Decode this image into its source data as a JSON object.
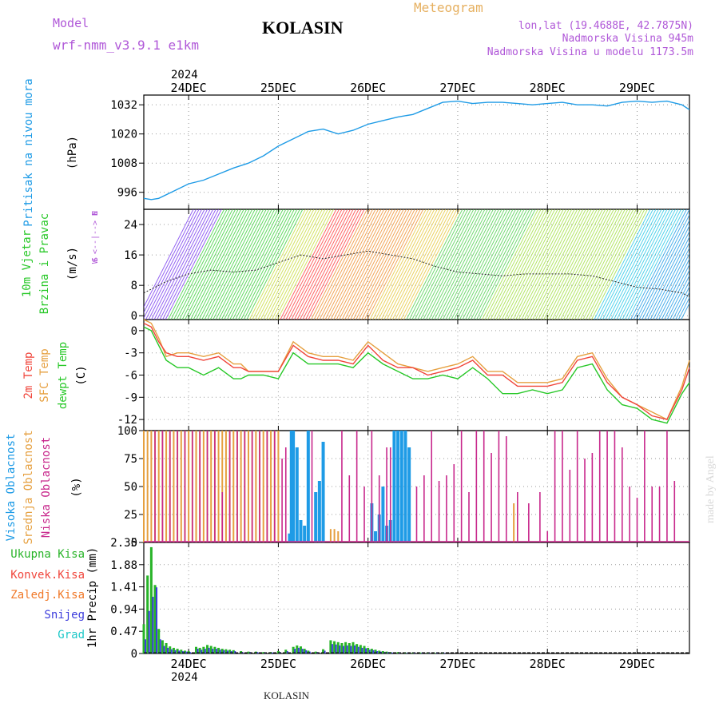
{
  "header": {
    "model_label": "Model",
    "model_name": "wrf-nmm_v3.9.1  e1km",
    "station": "KOLASIN",
    "product": "Meteogram",
    "lonlat": "lon,lat (19.4688E, 42.7875N)",
    "elevation": "Nadmorska Visina 945m",
    "model_elevation": "Nadmorska Visina u modelu 1173.5m",
    "year": "2024",
    "footer_station": "KOLASIN",
    "credit": "made by Angel"
  },
  "colors": {
    "pressure": "#1e9be6",
    "temp_2m": "#f0463c",
    "temp_sfc": "#e6a040",
    "dewpoint": "#28c828",
    "cloud_high": "#1e9be6",
    "cloud_mid": "#e6a040",
    "cloud_low": "#c8288c",
    "precip_total": "#28b428",
    "precip_conv": "#f0463c",
    "precip_frz": "#f07828",
    "precip_snow": "#3c3cdc",
    "precip_hail": "#1ec8c8"
  },
  "panel_labels": {
    "pressure": [
      "Pritisak na nivou mora",
      "(hPa)"
    ],
    "wind": [
      "10m Vjetar",
      "Brzina i Pravac",
      "(m/s)"
    ],
    "wind_compass": [
      "N",
      "^",
      "|",
      "W <--|--> E",
      "|",
      "v",
      "S"
    ],
    "temp": [
      "2m Temp",
      "SFC Temp",
      "dewpt Temp",
      "(C)"
    ],
    "cloud": [
      "Visoka Oblacnost",
      "Srednja Oblacnost",
      "Niska Oblacnost",
      "(%)"
    ],
    "precip_legend": [
      "Ukupna Kisa",
      "Konvek.Kisa",
      "Zaledj.Kisa",
      "Snijeg",
      "Grad"
    ],
    "precip_axis": "1hr Precip (mm)"
  },
  "chart_data": [
    {
      "id": "pressure",
      "type": "line",
      "x_unit": "hours from 23DEC 12UTC",
      "x_ticks": [
        "24DEC",
        "25DEC",
        "26DEC",
        "27DEC",
        "28DEC",
        "29DEC"
      ],
      "ylabel": "(hPa)",
      "ylim": [
        989,
        1036
      ],
      "yticks": [
        996,
        1008,
        1020,
        1032
      ],
      "grid": true,
      "series": [
        {
          "name": "Pritisak na nivou mora",
          "x": [
            0,
            2,
            4,
            8,
            12,
            16,
            20,
            24,
            28,
            32,
            36,
            40,
            44,
            48,
            52,
            56,
            60,
            64,
            68,
            72,
            76,
            80,
            84,
            88,
            92,
            96,
            100,
            104,
            108,
            112,
            116,
            120,
            124,
            128,
            132,
            136,
            140,
            144,
            146
          ],
          "values": [
            993.5,
            993,
            993.5,
            996.5,
            999.5,
            1001,
            1003.5,
            1006,
            1008,
            1011,
            1015,
            1018,
            1021,
            1022,
            1020,
            1021.5,
            1024,
            1025.5,
            1027,
            1028,
            1030.5,
            1033,
            1033.5,
            1032.5,
            1033,
            1033,
            1032.5,
            1032,
            1032.5,
            1033,
            1032,
            1032,
            1031.5,
            1033,
            1033.5,
            1033,
            1033.5,
            1032,
            1030
          ]
        }
      ]
    },
    {
      "id": "wind",
      "type": "line",
      "x_unit": "hours from 23DEC 12UTC",
      "ylabel": "(m/s)",
      "ylim": [
        -1,
        28
      ],
      "yticks": [
        0,
        8,
        16,
        24
      ],
      "grid": true,
      "series": [
        {
          "name": "10m Vjetar",
          "x": [
            0,
            6,
            12,
            18,
            24,
            30,
            36,
            42,
            48,
            54,
            60,
            66,
            72,
            78,
            84,
            90,
            96,
            102,
            108,
            114,
            120,
            126,
            132,
            138,
            144,
            146
          ],
          "values": [
            6,
            9,
            11,
            12,
            11.5,
            12,
            14,
            16,
            15,
            16,
            17,
            16,
            15,
            13,
            11.5,
            11,
            10.5,
            11,
            11,
            11,
            10.5,
            9,
            7.5,
            7,
            6,
            5
          ]
        }
      ]
    },
    {
      "id": "temperature",
      "type": "line",
      "x_unit": "hours from 23DEC 12UTC",
      "ylabel": "(C)",
      "ylim": [
        -13.5,
        1.5
      ],
      "yticks": [
        0,
        -3,
        -6,
        -9,
        -12
      ],
      "grid": true,
      "series": [
        {
          "name": "2m Temp",
          "x": [
            0,
            2,
            4,
            6,
            9,
            12,
            16,
            20,
            24,
            26,
            28,
            32,
            36,
            40,
            44,
            48,
            52,
            56,
            60,
            64,
            68,
            72,
            76,
            80,
            84,
            88,
            92,
            96,
            100,
            104,
            108,
            112,
            116,
            120,
            124,
            128,
            132,
            136,
            140,
            144,
            146
          ],
          "values": [
            1,
            0.5,
            -1.5,
            -3,
            -3.5,
            -3.5,
            -4,
            -3.5,
            -5,
            -5,
            -5.5,
            -5.5,
            -5.5,
            -2,
            -3.5,
            -4,
            -4,
            -4.5,
            -2,
            -4,
            -5,
            -5,
            -6,
            -5.5,
            -5,
            -4,
            -6,
            -6,
            -7.5,
            -7.5,
            -7.5,
            -7,
            -4,
            -3.5,
            -7,
            -9,
            -10,
            -11.5,
            -12,
            -8,
            -5
          ]
        },
        {
          "name": "SFC Temp",
          "x": [
            0,
            2,
            4,
            6,
            9,
            12,
            16,
            20,
            24,
            26,
            28,
            32,
            36,
            40,
            44,
            48,
            52,
            56,
            60,
            64,
            68,
            72,
            76,
            80,
            84,
            88,
            92,
            96,
            100,
            104,
            108,
            112,
            116,
            120,
            124,
            128,
            132,
            136,
            140,
            144,
            146
          ],
          "values": [
            1.5,
            1,
            -1,
            -3.5,
            -3,
            -3,
            -3.5,
            -3,
            -4.5,
            -4.5,
            -5.5,
            -5.5,
            -5.5,
            -1.5,
            -3,
            -3.5,
            -3.5,
            -4,
            -1.5,
            -3,
            -4.5,
            -5,
            -5.5,
            -5,
            -4.5,
            -3.5,
            -5.5,
            -5.5,
            -7,
            -7,
            -7,
            -6.5,
            -3.5,
            -3,
            -6.5,
            -9,
            -10,
            -11,
            -12,
            -7.5,
            -4
          ]
        },
        {
          "name": "dewpt Temp",
          "x": [
            0,
            2,
            4,
            6,
            9,
            12,
            16,
            20,
            24,
            26,
            28,
            32,
            36,
            40,
            44,
            48,
            52,
            56,
            60,
            64,
            68,
            72,
            76,
            80,
            84,
            88,
            92,
            96,
            100,
            104,
            108,
            112,
            116,
            120,
            124,
            128,
            132,
            136,
            140,
            144,
            146
          ],
          "values": [
            0.5,
            0,
            -2,
            -4,
            -5,
            -5,
            -6,
            -5,
            -6.5,
            -6.5,
            -6,
            -6,
            -6.5,
            -3,
            -4.5,
            -4.5,
            -4.5,
            -5,
            -3,
            -4.5,
            -5.5,
            -6.5,
            -6.5,
            -6,
            -6.5,
            -5,
            -6.5,
            -8.5,
            -8.5,
            -8,
            -8.5,
            -8,
            -5,
            -4.5,
            -8,
            -10,
            -10.5,
            -12,
            -12.5,
            -8.5,
            -7
          ]
        }
      ]
    },
    {
      "id": "cloud",
      "type": "bar",
      "x_unit": "hours from 23DEC 12UTC",
      "ylabel": "(%)",
      "ylim": [
        0,
        100
      ],
      "yticks": [
        0,
        25,
        50,
        75,
        100
      ],
      "grid": true,
      "series": [
        {
          "name": "Visoka Oblacnost",
          "x": [
            39,
            39.5,
            40,
            41,
            42,
            43,
            44,
            46,
            47,
            48,
            61,
            62,
            63,
            64,
            65,
            66,
            67,
            68,
            69,
            70,
            71
          ],
          "values": [
            8,
            100,
            100,
            85,
            20,
            15,
            100,
            45,
            55,
            90,
            35,
            10,
            25,
            50,
            15,
            20,
            100,
            100,
            100,
            100,
            85
          ]
        },
        {
          "name": "Srednja Oblacnost",
          "x": [
            0,
            1,
            2,
            3,
            4,
            5,
            6,
            7,
            8,
            9,
            10,
            11,
            12,
            13,
            14,
            15,
            16,
            17,
            18,
            19,
            20,
            21,
            22,
            23,
            24,
            25,
            26,
            27,
            28,
            29,
            30,
            31,
            32,
            33,
            34,
            35,
            36,
            50,
            51,
            52,
            99
          ],
          "values": [
            100,
            100,
            100,
            100,
            100,
            100,
            100,
            100,
            100,
            100,
            100,
            100,
            100,
            100,
            100,
            100,
            100,
            100,
            100,
            100,
            100,
            100,
            100,
            100,
            100,
            100,
            100,
            100,
            100,
            100,
            100,
            100,
            100,
            100,
            100,
            100,
            100,
            12,
            12,
            10,
            35
          ]
        },
        {
          "name": "Niska Oblacnost",
          "x": [
            3,
            5,
            7,
            9,
            11,
            13,
            15,
            17,
            19,
            21,
            23,
            25,
            27,
            29,
            31,
            33,
            35,
            37,
            38,
            45,
            53,
            55,
            57,
            59,
            61,
            63,
            65,
            66,
            73,
            75,
            77,
            79,
            81,
            83,
            85,
            87,
            89,
            91,
            93,
            95,
            97,
            100,
            103,
            106,
            108,
            110,
            112,
            114,
            116,
            118,
            120,
            122,
            124,
            126,
            128,
            130,
            132,
            134,
            136,
            138,
            140,
            142
          ],
          "values": [
            100,
            100,
            100,
            100,
            100,
            100,
            100,
            100,
            100,
            45,
            100,
            100,
            100,
            100,
            100,
            100,
            100,
            75,
            85,
            100,
            100,
            60,
            100,
            50,
            100,
            60,
            85,
            85,
            50,
            60,
            100,
            55,
            60,
            70,
            100,
            45,
            100,
            100,
            80,
            100,
            95,
            45,
            35,
            45,
            10,
            100,
            100,
            65,
            100,
            75,
            80,
            100,
            100,
            100,
            85,
            50,
            40,
            100,
            50,
            50,
            100,
            55
          ]
        }
      ]
    },
    {
      "id": "precip",
      "type": "bar",
      "x_unit": "hours from 23DEC 12UTC",
      "x_ticks": [
        "24DEC",
        "25DEC",
        "26DEC",
        "27DEC",
        "28DEC",
        "29DEC"
      ],
      "ylabel": "1hr Precip (mm)",
      "ylim": [
        0,
        2.35
      ],
      "yticks": [
        0,
        0.47,
        0.94,
        1.41,
        1.88,
        2.35
      ],
      "grid": true,
      "series": [
        {
          "name": "Ukupna Kisa",
          "x": [
            0,
            1,
            2,
            3,
            4,
            5,
            6,
            7,
            8,
            9,
            10,
            11,
            12,
            14,
            15,
            16,
            17,
            18,
            19,
            20,
            21,
            22,
            23,
            24,
            26,
            28,
            30,
            32,
            34,
            36,
            38,
            40,
            41,
            42,
            43,
            44,
            46,
            48,
            50,
            51,
            52,
            53,
            54,
            55,
            56,
            57,
            58,
            59,
            60,
            61,
            62,
            63,
            64,
            65,
            66,
            68,
            70,
            72,
            74,
            76,
            78,
            80
          ],
          "values": [
            0.62,
            1.65,
            2.25,
            1.45,
            0.52,
            0.28,
            0.22,
            0.15,
            0.12,
            0.1,
            0.08,
            0.06,
            0.05,
            0.14,
            0.12,
            0.14,
            0.18,
            0.16,
            0.14,
            0.12,
            0.1,
            0.09,
            0.08,
            0.07,
            0.05,
            0.04,
            0.04,
            0.03,
            0.03,
            0.05,
            0.08,
            0.14,
            0.17,
            0.15,
            0.1,
            0.06,
            0.04,
            0.09,
            0.28,
            0.26,
            0.24,
            0.22,
            0.24,
            0.22,
            0.24,
            0.2,
            0.18,
            0.16,
            0.12,
            0.1,
            0.08,
            0.06,
            0.05,
            0.04,
            0.03,
            0.03,
            0.02,
            0.02,
            0.02,
            0.02,
            0.01,
            0.01
          ]
        },
        {
          "name": "Snijeg",
          "x": [
            0,
            1,
            2,
            3,
            4,
            5,
            6,
            7,
            8,
            9,
            10,
            11,
            12,
            14,
            15,
            16,
            17,
            18,
            19,
            20,
            21,
            22,
            23,
            24,
            26,
            28,
            30,
            32,
            34,
            36,
            38,
            40,
            41,
            42,
            43,
            44,
            46,
            48,
            50,
            51,
            52,
            53,
            54,
            55,
            56,
            57,
            58,
            59,
            60,
            61,
            62,
            63,
            64,
            65,
            66,
            68,
            70,
            72,
            74,
            76,
            78,
            80
          ],
          "values": [
            0.3,
            0.9,
            1.2,
            1.4,
            0.3,
            0.16,
            0.12,
            0.09,
            0.07,
            0.06,
            0.05,
            0.04,
            0.03,
            0.1,
            0.08,
            0.1,
            0.12,
            0.1,
            0.1,
            0.08,
            0.07,
            0.06,
            0.05,
            0.05,
            0.03,
            0.03,
            0.03,
            0.02,
            0.02,
            0.03,
            0.05,
            0.1,
            0.12,
            0.1,
            0.07,
            0.04,
            0.03,
            0.06,
            0.2,
            0.19,
            0.17,
            0.16,
            0.17,
            0.16,
            0.17,
            0.14,
            0.12,
            0.11,
            0.08,
            0.07,
            0.05,
            0.04,
            0.03,
            0.03,
            0.02,
            0.02,
            0.01,
            0.01,
            0.01,
            0.01,
            0.01,
            0.01
          ]
        }
      ]
    }
  ]
}
